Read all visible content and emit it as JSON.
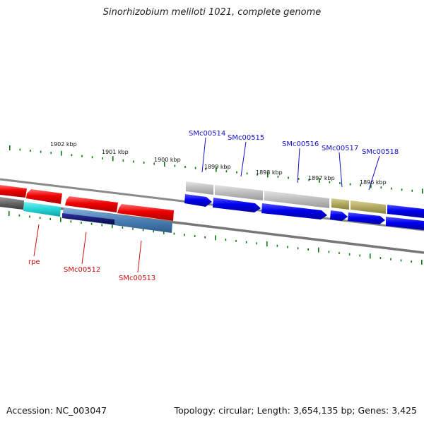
{
  "title": "Sinorhizobium meliloti 1021, complete genome",
  "footer": {
    "accession": "Accession: NC_003047",
    "summary": "Topology: circular; Length: 3,654,135 bp; Genes: 3,425"
  },
  "kbp_labels": [
    "1902 kbp",
    "1901 kbp",
    "1900 kbp",
    "1899 kbp",
    "1898 kbp",
    "1897 kbp",
    "1896 kbp"
  ],
  "genes_top": [
    "SMc00514",
    "SMc00515",
    "SMc00516",
    "SMc00517",
    "SMc00518"
  ],
  "genes_bottom": [
    "rpe",
    "SMc00512",
    "SMc00513"
  ],
  "colors": {
    "forward_gene": "#0000ee",
    "reverse_gene": "#ee0000",
    "tick": "#0b7a0b",
    "cyan_feature": "#22d4d4",
    "steel_feature": "#4a7fb5",
    "navy_feature": "#10107a",
    "silver_feature": "#b8b8b8",
    "olive_feature": "#b0a860",
    "dark_feature": "#555555"
  }
}
